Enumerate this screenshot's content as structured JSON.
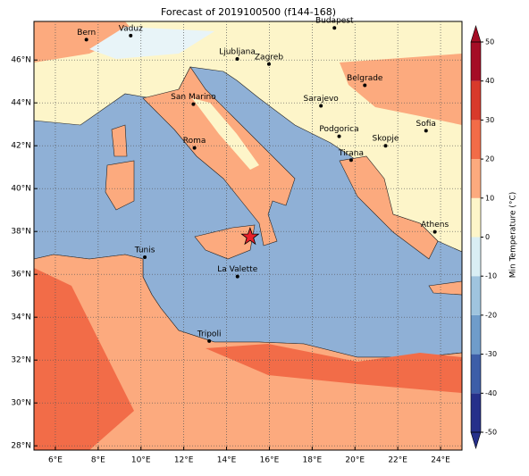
{
  "map": {
    "title": "Forecast of 2019100500 (f144-168)",
    "lonlim": [
      5,
      25
    ],
    "latlim": [
      27.8,
      47.8
    ],
    "lonticks": [
      {
        "value": 6,
        "label": "6°E"
      },
      {
        "value": 8,
        "label": "8°E"
      },
      {
        "value": 10,
        "label": "10°E"
      },
      {
        "value": 12,
        "label": "12°E"
      },
      {
        "value": 14,
        "label": "14°E"
      },
      {
        "value": 16,
        "label": "16°E"
      },
      {
        "value": 18,
        "label": "18°E"
      },
      {
        "value": 20,
        "label": "20°E"
      },
      {
        "value": 22,
        "label": "22°E"
      },
      {
        "value": 24,
        "label": "24°E"
      }
    ],
    "latticks": [
      {
        "value": 28,
        "label": "28°N"
      },
      {
        "value": 30,
        "label": "30°N"
      },
      {
        "value": 32,
        "label": "32°N"
      },
      {
        "value": 34,
        "label": "34°N"
      },
      {
        "value": 36,
        "label": "36°N"
      },
      {
        "value": 38,
        "label": "38°N"
      },
      {
        "value": 40,
        "label": "40°N"
      },
      {
        "value": 42,
        "label": "42°N"
      },
      {
        "value": 44,
        "label": "44°N"
      },
      {
        "value": 46,
        "label": "46°N"
      }
    ],
    "grid": true,
    "cities": [
      {
        "name": "Bern",
        "lon": 7.45,
        "lat": 46.95
      },
      {
        "name": "Vaduz",
        "lon": 9.52,
        "lat": 47.14
      },
      {
        "name": "Budapest",
        "lon": 19.04,
        "lat": 47.5
      },
      {
        "name": "Ljubljana",
        "lon": 14.5,
        "lat": 46.05
      },
      {
        "name": "Zagreb",
        "lon": 15.98,
        "lat": 45.81
      },
      {
        "name": "Belgrade",
        "lon": 20.46,
        "lat": 44.82
      },
      {
        "name": "San Marino",
        "lon": 12.45,
        "lat": 43.94
      },
      {
        "name": "Sarajevo",
        "lon": 18.41,
        "lat": 43.86
      },
      {
        "name": "Sofia",
        "lon": 23.32,
        "lat": 42.7
      },
      {
        "name": "Podgorica",
        "lon": 19.26,
        "lat": 42.44
      },
      {
        "name": "Skopje",
        "lon": 21.43,
        "lat": 42.0
      },
      {
        "name": "Roma",
        "lon": 12.5,
        "lat": 41.9
      },
      {
        "name": "Tirana",
        "lon": 19.82,
        "lat": 41.33
      },
      {
        "name": "Athens",
        "lon": 23.73,
        "lat": 37.98
      },
      {
        "name": "Tunis",
        "lon": 10.18,
        "lat": 36.8
      },
      {
        "name": "La Valette",
        "lon": 14.51,
        "lat": 35.9
      },
      {
        "name": "Tripoli",
        "lon": 13.19,
        "lat": 32.89
      }
    ],
    "event": {
      "lon": 15.1,
      "lat": 37.75,
      "color": "#e8202a"
    },
    "colorbar": {
      "label": "Min Temperature (°C)",
      "ticks": [
        -50,
        -40,
        -30,
        -20,
        -10,
        0,
        10,
        20,
        30,
        40,
        50
      ],
      "colors": [
        "#26308a",
        "#3d5ea8",
        "#6f9cca",
        "#9fc4de",
        "#d9eef4",
        "#fdf5c9",
        "#fcaa7e",
        "#f26c48",
        "#d83a2b",
        "#a50d26"
      ]
    }
  }
}
